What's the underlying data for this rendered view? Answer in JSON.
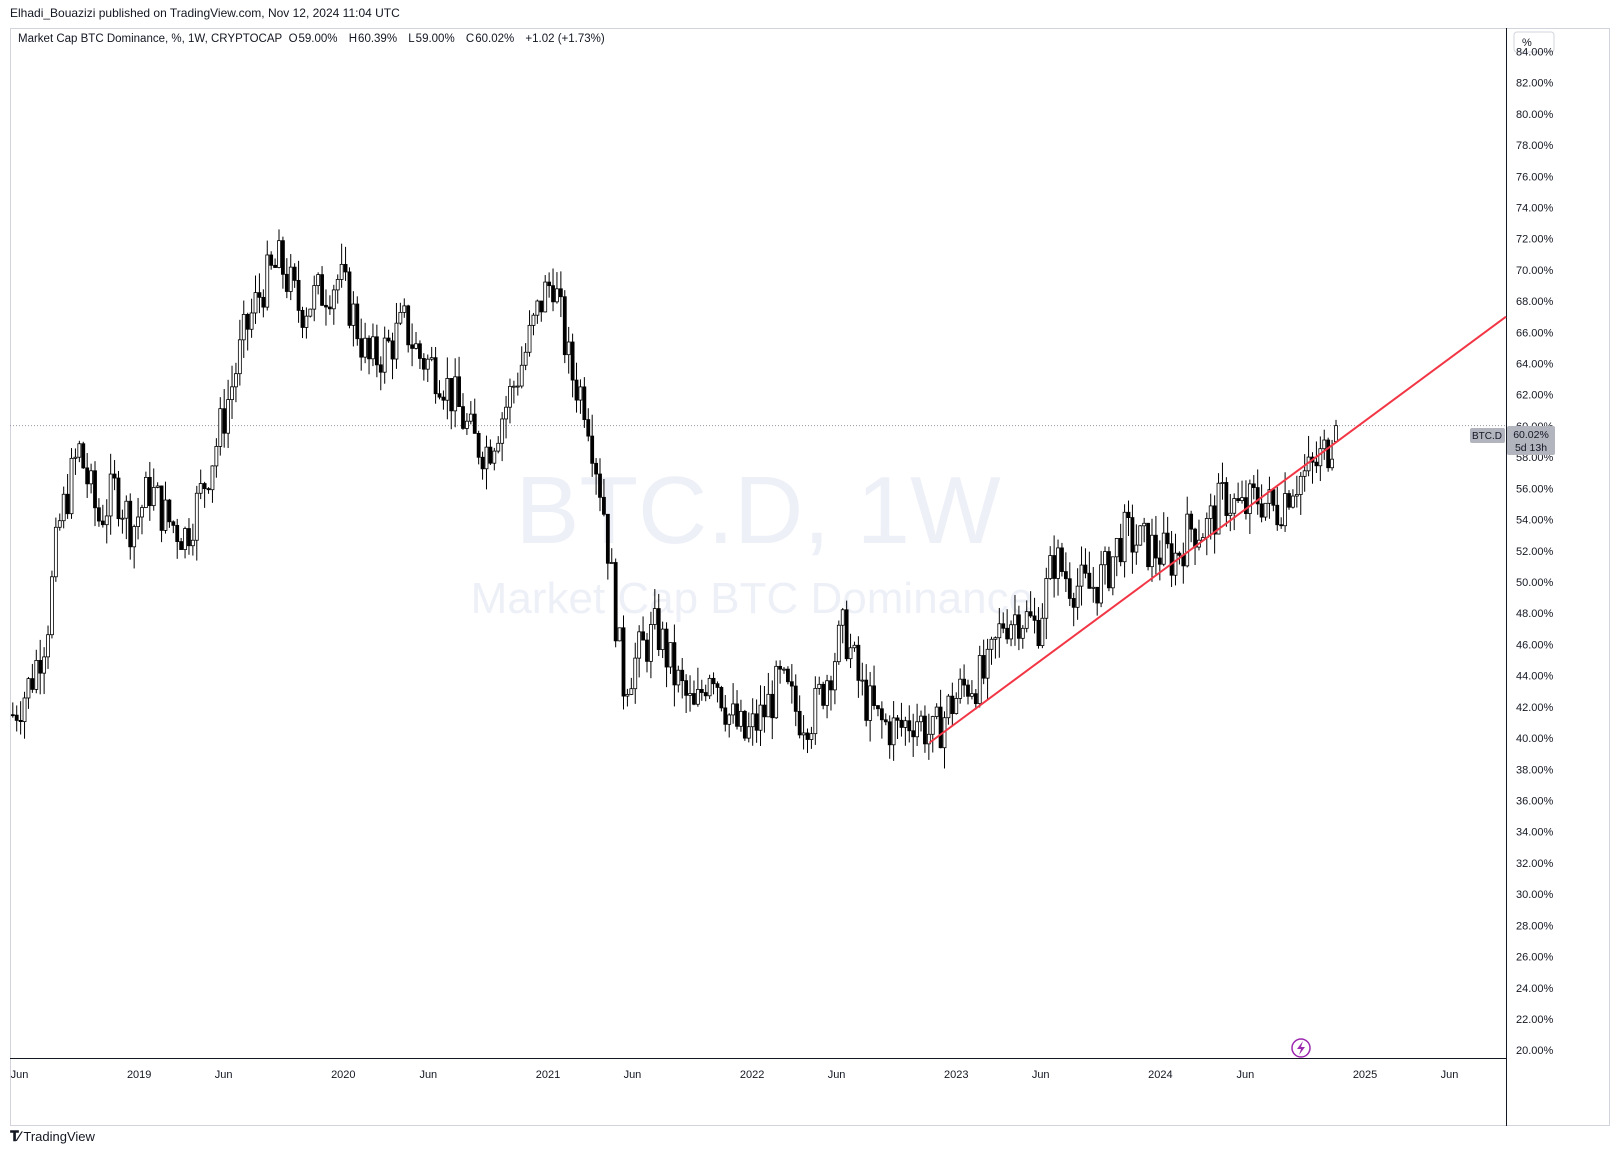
{
  "header": {
    "publisher": "Elhadi_Bouazizi published on TradingView.com, Nov 12, 2024 11:04 UTC"
  },
  "legend": {
    "symbol": "Market Cap BTC Dominance, %, 1W, CRYPTOCAP",
    "o_label": "O",
    "o": "59.00%",
    "h_label": "H",
    "h": "60.39%",
    "l_label": "L",
    "l": "59.00%",
    "c_label": "C",
    "c": "60.02%",
    "change": "+1.02 (+1.73%)"
  },
  "watermark": {
    "main": "BTC.D, 1W",
    "sub": "Market Cap BTC Dominance,"
  },
  "price_tag": {
    "symbol": "BTC.D",
    "value": "60.02%",
    "countdown": "5d 13h"
  },
  "axis_unit": "%",
  "footer": {
    "brand": "TradingView"
  },
  "colors": {
    "trendline": "#f23645",
    "candle_up": "#ffffff",
    "candle_down": "#000000",
    "price_tag": "#b2b5be",
    "watermark": "#eef0f8"
  },
  "chart_data": {
    "type": "candlestick",
    "timeframe": "1W",
    "ylim": [
      19.5,
      85.5
    ],
    "y_ticks": [
      "84.00%",
      "82.00%",
      "80.00%",
      "78.00%",
      "76.00%",
      "74.00%",
      "72.00%",
      "70.00%",
      "68.00%",
      "66.00%",
      "64.00%",
      "62.00%",
      "60.00%",
      "58.00%",
      "56.00%",
      "54.00%",
      "52.00%",
      "50.00%",
      "48.00%",
      "46.00%",
      "44.00%",
      "42.00%",
      "40.00%",
      "38.00%",
      "36.00%",
      "34.00%",
      "32.00%",
      "30.00%",
      "28.00%",
      "26.00%",
      "24.00%",
      "22.00%",
      "20.00%"
    ],
    "x_ticks": [
      {
        "label": "Jun",
        "date": "2018-06-01"
      },
      {
        "label": "2019",
        "date": "2019-01-01"
      },
      {
        "label": "Jun",
        "date": "2019-06-01"
      },
      {
        "label": "2020",
        "date": "2020-01-01"
      },
      {
        "label": "Jun",
        "date": "2020-06-01"
      },
      {
        "label": "2021",
        "date": "2021-01-01"
      },
      {
        "label": "Jun",
        "date": "2021-06-01"
      },
      {
        "label": "2022",
        "date": "2022-01-01"
      },
      {
        "label": "Jun",
        "date": "2022-06-01"
      },
      {
        "label": "2023",
        "date": "2023-01-01"
      },
      {
        "label": "Jun",
        "date": "2023-06-01"
      },
      {
        "label": "2024",
        "date": "2024-01-01"
      },
      {
        "label": "Jun",
        "date": "2024-06-01"
      },
      {
        "label": "2025",
        "date": "2025-01-01"
      },
      {
        "label": "Jun",
        "date": "2025-06-01"
      }
    ],
    "x_range": [
      "2018-05-15",
      "2025-09-10"
    ],
    "close_path": [
      [
        "2018-05-20",
        41.5
      ],
      [
        "2018-06-20",
        43.5
      ],
      [
        "2018-07-20",
        47.0
      ],
      [
        "2018-08-10",
        53.5
      ],
      [
        "2018-09-15",
        58.5
      ],
      [
        "2018-10-20",
        54.0
      ],
      [
        "2018-11-20",
        56.0
      ],
      [
        "2018-12-20",
        53.5
      ],
      [
        "2019-01-20",
        56.0
      ],
      [
        "2019-02-20",
        54.0
      ],
      [
        "2019-03-25",
        53.0
      ],
      [
        "2019-04-20",
        55.5
      ],
      [
        "2019-05-20",
        59.0
      ],
      [
        "2019-06-15",
        62.5
      ],
      [
        "2019-07-10",
        66.0
      ],
      [
        "2019-08-10",
        69.0
      ],
      [
        "2019-09-10",
        70.5
      ],
      [
        "2019-10-15",
        67.5
      ],
      [
        "2019-11-20",
        68.5
      ],
      [
        "2019-12-25",
        69.5
      ],
      [
        "2020-01-20",
        67.0
      ],
      [
        "2020-02-15",
        64.0
      ],
      [
        "2020-03-20",
        65.0
      ],
      [
        "2020-04-20",
        66.5
      ],
      [
        "2020-05-15",
        64.5
      ],
      [
        "2020-06-20",
        63.5
      ],
      [
        "2020-07-20",
        61.5
      ],
      [
        "2020-08-20",
        59.0
      ],
      [
        "2020-09-15",
        58.5
      ],
      [
        "2020-10-20",
        61.5
      ],
      [
        "2020-11-20",
        64.5
      ],
      [
        "2020-12-20",
        68.0
      ],
      [
        "2021-01-10",
        69.5
      ],
      [
        "2021-02-10",
        63.5
      ],
      [
        "2021-03-10",
        61.5
      ],
      [
        "2021-04-10",
        55.0
      ],
      [
        "2021-05-15",
        43.5
      ],
      [
        "2021-06-15",
        45.5
      ],
      [
        "2021-07-15",
        47.0
      ],
      [
        "2021-08-15",
        44.0
      ],
      [
        "2021-09-20",
        41.5
      ],
      [
        "2021-10-20",
        45.0
      ],
      [
        "2021-11-20",
        41.5
      ],
      [
        "2021-12-20",
        40.0
      ],
      [
        "2022-01-20",
        41.5
      ],
      [
        "2022-02-20",
        43.5
      ],
      [
        "2022-03-25",
        41.5
      ],
      [
        "2022-04-20",
        41.5
      ],
      [
        "2022-05-15",
        44.0
      ],
      [
        "2022-06-15",
        47.0
      ],
      [
        "2022-07-15",
        43.0
      ],
      [
        "2022-08-15",
        41.0
      ],
      [
        "2022-09-20",
        40.5
      ],
      [
        "2022-10-20",
        41.5
      ],
      [
        "2022-11-20",
        40.0
      ],
      [
        "2022-12-20",
        42.0
      ],
      [
        "2023-01-20",
        43.5
      ],
      [
        "2023-02-25",
        44.0
      ],
      [
        "2023-03-25",
        47.5
      ],
      [
        "2023-04-25",
        48.0
      ],
      [
        "2023-05-25",
        47.0
      ],
      [
        "2023-06-25",
        51.5
      ],
      [
        "2023-07-25",
        50.0
      ],
      [
        "2023-08-25",
        49.5
      ],
      [
        "2023-09-25",
        50.5
      ],
      [
        "2023-10-25",
        53.0
      ],
      [
        "2023-11-25",
        52.5
      ],
      [
        "2023-12-25",
        52.0
      ],
      [
        "2024-01-25",
        51.5
      ],
      [
        "2024-02-25",
        53.5
      ],
      [
        "2024-03-25",
        53.5
      ],
      [
        "2024-04-25",
        55.5
      ],
      [
        "2024-05-25",
        54.5
      ],
      [
        "2024-06-25",
        55.5
      ],
      [
        "2024-07-25",
        54.5
      ],
      [
        "2024-08-25",
        56.5
      ],
      [
        "2024-09-25",
        57.0
      ],
      [
        "2024-10-25",
        58.5
      ],
      [
        "2024-11-11",
        60.02
      ]
    ],
    "last_candle": {
      "date": "2024-11-11",
      "open": 59.0,
      "high": 60.39,
      "low": 59.0,
      "close": 60.02
    },
    "current_price": 60.02,
    "trendline": {
      "from": [
        "2022-11-14",
        39.7
      ],
      "to": [
        "2025-09-10",
        67.0
      ],
      "color": "#f23645"
    }
  }
}
